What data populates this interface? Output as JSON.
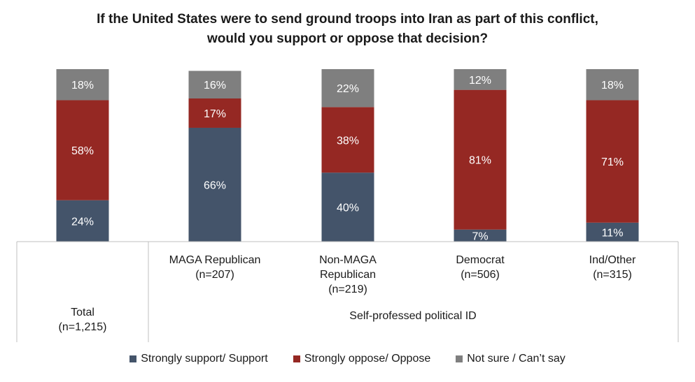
{
  "title_line1": "If the United States were to send ground troops into Iran as part of this conflict,",
  "title_line2": "would you support or oppose that decision?",
  "chart_data": {
    "type": "stacked_bar",
    "title": "If the United States were to send ground troops into Iran as part of this conflict, would you support or oppose that decision?",
    "categories": [
      [
        "Total",
        "(n=1,215)"
      ],
      [
        "MAGA Republican",
        "(n=207)"
      ],
      [
        "Non-MAGA",
        "Republican",
        "(n=219)"
      ],
      [
        "Democrat",
        "(n=506)"
      ],
      [
        "Ind/Other",
        "(n=315)"
      ]
    ],
    "group_label": "Self-professed political ID",
    "series": [
      {
        "name": "Strongly support/ Support",
        "color": "#44546a",
        "values": [
          24,
          66,
          40,
          7,
          11
        ]
      },
      {
        "name": "Strongly oppose/ Oppose",
        "color": "#952823",
        "values": [
          58,
          17,
          38,
          81,
          71
        ]
      },
      {
        "name": "Not sure / Can’t say",
        "color": "#7f7f7f",
        "values": [
          18,
          16,
          22,
          12,
          18
        ]
      }
    ],
    "ylim": [
      0,
      100
    ],
    "value_suffix": "%"
  }
}
